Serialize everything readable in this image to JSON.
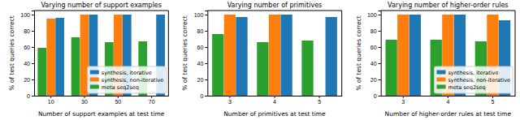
{
  "chart_data": [
    {
      "type": "bar",
      "title": "Varying number of support examples",
      "x_label": "Number of support examples at test time",
      "y_label": "% of test queries correct",
      "categories": [
        "10",
        "30",
        "50",
        "70"
      ],
      "series": [
        {
          "name": "meta seq2seq",
          "color": "#2ca02c",
          "values": [
            59,
            72,
            66,
            67
          ]
        },
        {
          "name": "synthesis, non-iterative",
          "color": "#ff7f0e",
          "values": [
            95,
            100,
            100,
            null
          ]
        },
        {
          "name": "synthesis, iterative",
          "color": "#1f77b4",
          "values": [
            96,
            100,
            100,
            100
          ]
        }
      ],
      "ylim": [
        0,
        105
      ],
      "yticks": [
        0,
        20,
        40,
        60,
        80,
        100
      ],
      "legend": "lower right"
    },
    {
      "type": "bar",
      "title": "Varying number of primitives",
      "x_label": "Number of primitives at test time",
      "y_label": "% of test queries correct",
      "categories": [
        "3",
        "4",
        "5"
      ],
      "series": [
        {
          "name": "meta seq2seq",
          "color": "#2ca02c",
          "values": [
            76,
            66,
            68
          ]
        },
        {
          "name": "synthesis, non-iterative",
          "color": "#ff7f0e",
          "values": [
            100,
            100,
            null
          ]
        },
        {
          "name": "synthesis, iterative",
          "color": "#1f77b4",
          "values": [
            97,
            100,
            97
          ]
        }
      ],
      "ylim": [
        0,
        105
      ],
      "yticks": [
        0,
        20,
        40,
        60,
        80,
        100
      ]
    },
    {
      "type": "bar",
      "title": "Varying number of higher-order rules",
      "x_label": "Number of higher-order rules at test time",
      "y_label": "% of test queries correct",
      "categories": [
        "3",
        "4",
        "5"
      ],
      "series": [
        {
          "name": "meta seq2seq",
          "color": "#2ca02c",
          "values": [
            69,
            69,
            67
          ]
        },
        {
          "name": "synthesis, non-iterative",
          "color": "#ff7f0e",
          "values": [
            100,
            100,
            100
          ]
        },
        {
          "name": "synthesis, iterative",
          "color": "#1f77b4",
          "values": [
            100,
            100,
            93
          ]
        }
      ],
      "ylim": [
        0,
        105
      ],
      "yticks": [
        0,
        20,
        40,
        60,
        80,
        100
      ],
      "legend": "lower right"
    }
  ]
}
